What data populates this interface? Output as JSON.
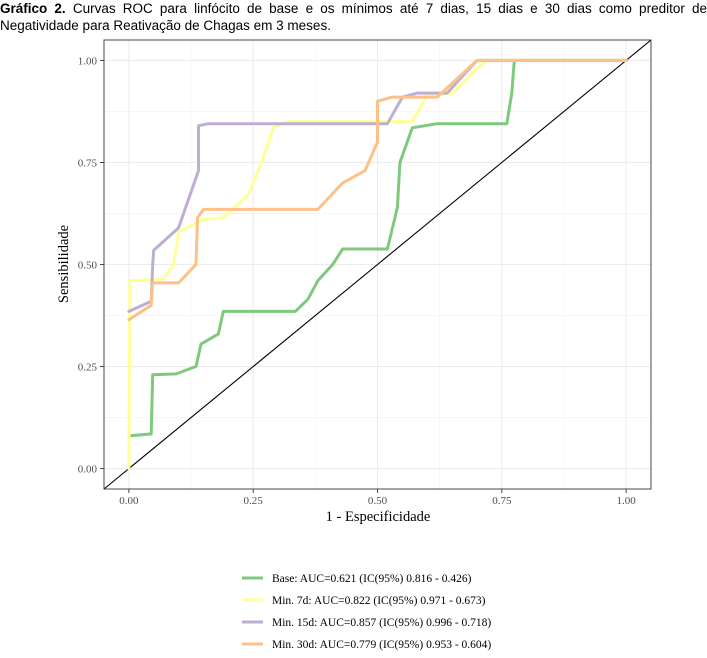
{
  "caption": {
    "prefix": "Gráfico 2.",
    "text": " Curvas ROC para linfócito de base e os mínimos até 7 dias, 15 dias e 30 dias como preditor de Negatividade para Reativação de Chagas em 3 meses."
  },
  "chart_data": {
    "type": "line",
    "xlabel": "1 - Especificidade",
    "ylabel": "Sensibilidade",
    "xlim": [
      -0.05,
      1.05
    ],
    "ylim": [
      -0.05,
      1.05
    ],
    "x_ticks": [
      "0.00",
      "0.25",
      "0.50",
      "0.75",
      "1.00"
    ],
    "y_ticks": [
      "0.00",
      "0.25",
      "0.50",
      "0.75",
      "1.00"
    ],
    "grid": true,
    "legend_position": "bottom",
    "diagonal_reference": true,
    "series": [
      {
        "name": "Base: AUC=0.621 (IC(95%) 0.816 - 0.426)",
        "color": "#7fc97f",
        "points": [
          [
            0.0,
            0.08
          ],
          [
            0.045,
            0.085
          ],
          [
            0.048,
            0.23
          ],
          [
            0.095,
            0.232
          ],
          [
            0.135,
            0.25
          ],
          [
            0.145,
            0.305
          ],
          [
            0.18,
            0.33
          ],
          [
            0.19,
            0.385
          ],
          [
            0.335,
            0.385
          ],
          [
            0.36,
            0.415
          ],
          [
            0.38,
            0.46
          ],
          [
            0.41,
            0.5
          ],
          [
            0.43,
            0.538
          ],
          [
            0.52,
            0.538
          ],
          [
            0.54,
            0.64
          ],
          [
            0.545,
            0.75
          ],
          [
            0.57,
            0.835
          ],
          [
            0.62,
            0.845
          ],
          [
            0.76,
            0.845
          ],
          [
            0.77,
            0.92
          ],
          [
            0.775,
            1.0
          ],
          [
            1.0,
            1.0
          ]
        ]
      },
      {
        "name": "Min. 7d: AUC=0.822 (IC(95%) 0.971 - 0.673)",
        "color": "#ffff99",
        "points": [
          [
            0.0,
            0.0
          ],
          [
            0.002,
            0.46
          ],
          [
            0.07,
            0.465
          ],
          [
            0.09,
            0.5
          ],
          [
            0.1,
            0.58
          ],
          [
            0.15,
            0.61
          ],
          [
            0.19,
            0.615
          ],
          [
            0.24,
            0.67
          ],
          [
            0.27,
            0.76
          ],
          [
            0.29,
            0.835
          ],
          [
            0.32,
            0.85
          ],
          [
            0.57,
            0.85
          ],
          [
            0.6,
            0.915
          ],
          [
            0.65,
            0.92
          ],
          [
            0.7,
            0.98
          ],
          [
            0.72,
            1.0
          ],
          [
            1.0,
            1.0
          ]
        ]
      },
      {
        "name": "Min. 15d: AUC=0.857 (IC(95%) 0.996 - 0.718)",
        "color": "#beaed4",
        "points": [
          [
            0.0,
            0.385
          ],
          [
            0.045,
            0.41
          ],
          [
            0.048,
            0.5
          ],
          [
            0.05,
            0.535
          ],
          [
            0.1,
            0.59
          ],
          [
            0.14,
            0.73
          ],
          [
            0.14,
            0.84
          ],
          [
            0.16,
            0.845
          ],
          [
            0.34,
            0.845
          ],
          [
            0.52,
            0.845
          ],
          [
            0.55,
            0.91
          ],
          [
            0.58,
            0.92
          ],
          [
            0.64,
            0.92
          ],
          [
            0.7,
            1.0
          ],
          [
            1.0,
            1.0
          ]
        ]
      },
      {
        "name": "Min. 30d: AUC=0.779 (IC(95%) 0.953 - 0.604)",
        "color": "#fdc086",
        "points": [
          [
            0.0,
            0.365
          ],
          [
            0.045,
            0.4
          ],
          [
            0.048,
            0.455
          ],
          [
            0.1,
            0.455
          ],
          [
            0.135,
            0.5
          ],
          [
            0.138,
            0.615
          ],
          [
            0.15,
            0.635
          ],
          [
            0.38,
            0.635
          ],
          [
            0.43,
            0.7
          ],
          [
            0.475,
            0.73
          ],
          [
            0.5,
            0.8
          ],
          [
            0.5,
            0.9
          ],
          [
            0.53,
            0.91
          ],
          [
            0.62,
            0.91
          ],
          [
            0.7,
            1.0
          ],
          [
            1.0,
            1.0
          ]
        ]
      }
    ]
  }
}
